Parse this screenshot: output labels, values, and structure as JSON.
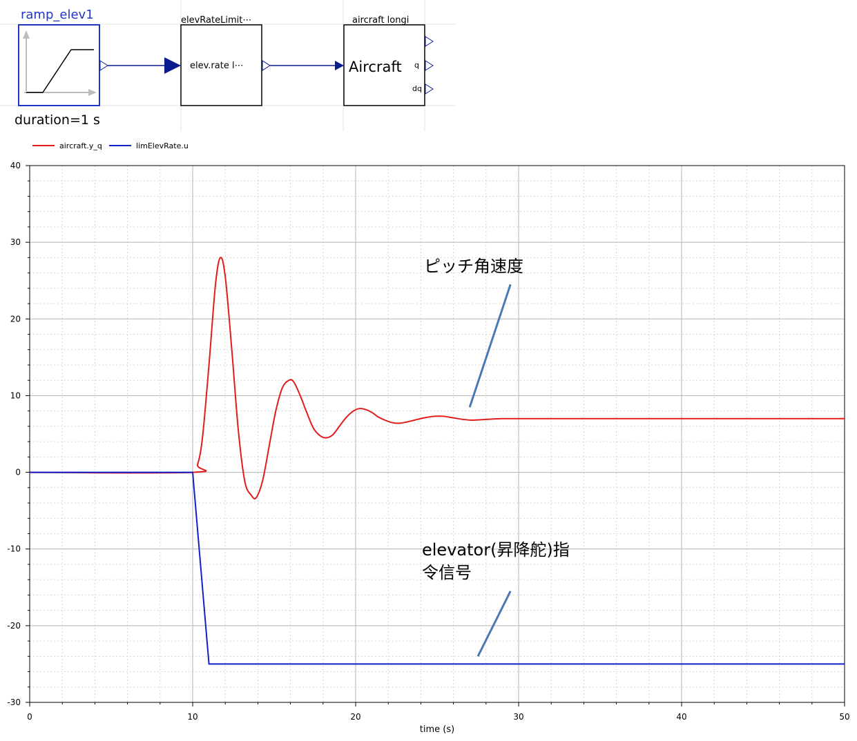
{
  "diagram": {
    "ramp_block": {
      "name": "ramp_elev1",
      "param": "duration=1  s"
    },
    "rate_block": {
      "name": "elevRateLimit⋯",
      "label": "elev.rate l⋯"
    },
    "aircraft_block": {
      "name": "aircraft longi",
      "label": "Aircraft",
      "port_q": "q",
      "port_dq": "dq"
    },
    "colors": {
      "selected": "#1f35c4",
      "wire": "#0a1a8f",
      "block": "#000000"
    }
  },
  "chart_data": {
    "type": "line",
    "xlabel": "time (s)",
    "ylabel": "",
    "xlim": [
      0,
      50
    ],
    "ylim": [
      -30,
      40
    ],
    "xticks": [
      "0",
      "10",
      "20",
      "30",
      "40",
      "50"
    ],
    "yticks": [
      "-30",
      "-20",
      "-10",
      "0",
      "10",
      "20",
      "30",
      "40"
    ],
    "grid": true,
    "legend_position": "top-left",
    "series": [
      {
        "name": "aircraft.y_q",
        "color": "#e31a1a",
        "x": [
          0,
          10,
          10.3,
          10.6,
          11.0,
          11.4,
          11.7,
          12.0,
          12.4,
          12.8,
          13.2,
          13.6,
          13.9,
          14.3,
          14.7,
          15.1,
          15.5,
          15.9,
          16.2,
          16.6,
          17.0,
          17.4,
          17.8,
          18.2,
          18.6,
          19.0,
          19.4,
          19.8,
          20.2,
          20.6,
          21.0,
          21.4,
          21.8,
          22.2,
          22.6,
          23.0,
          23.6,
          24.2,
          24.8,
          25.4,
          26.0,
          26.6,
          27.2,
          28.0,
          29.0,
          30.0,
          32.0,
          35.0,
          40.0,
          45.0,
          50.0
        ],
        "y": [
          0,
          0,
          1.0,
          4.5,
          14.0,
          24.5,
          28.0,
          25.5,
          16.0,
          5.5,
          -1.2,
          -3.0,
          -3.3,
          -1.0,
          3.5,
          8.0,
          11.0,
          12.0,
          11.8,
          10.0,
          7.8,
          5.8,
          4.8,
          4.5,
          4.9,
          6.0,
          7.1,
          7.9,
          8.3,
          8.2,
          7.8,
          7.2,
          6.8,
          6.5,
          6.4,
          6.5,
          6.8,
          7.1,
          7.3,
          7.3,
          7.1,
          6.9,
          6.8,
          6.9,
          7.0,
          7.0,
          7.0,
          7.0,
          7.0,
          7.0,
          7.0
        ]
      },
      {
        "name": "limElevRate.u",
        "color": "#1020c8",
        "x": [
          0,
          10,
          11,
          50
        ],
        "y": [
          0,
          0,
          -25,
          -25
        ]
      }
    ],
    "annotations": [
      {
        "text": "ピッチ角速度",
        "line": [
          [
            29.5,
            24.5
          ],
          [
            27.0,
            8.5
          ]
        ]
      },
      {
        "text_lines": [
          "elevator(昇降舵)指",
          "令信号"
        ],
        "line": [
          [
            29.5,
            -15.5
          ],
          [
            27.5,
            -24.0
          ]
        ]
      }
    ]
  }
}
